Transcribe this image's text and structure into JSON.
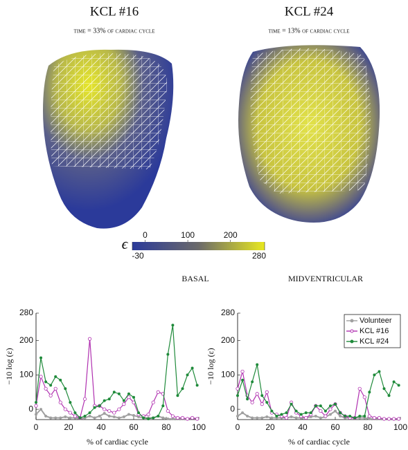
{
  "panels": [
    {
      "title": "KCL #16",
      "subtitle": "time = 33% of cardiac cycle"
    },
    {
      "title": "KCL #24",
      "subtitle": "time = 13% of cardiac cycle"
    }
  ],
  "colorbar": {
    "symbol": "ϵ",
    "clim": [
      -30,
      280
    ],
    "ticks": [
      -30,
      0,
      100,
      200,
      280
    ],
    "colors": [
      "#2b3a9a",
      "#6b6a6a",
      "#e8e820"
    ]
  },
  "chart_data": [
    {
      "type": "line",
      "title": "BASAL",
      "xlabel": "% of cardiac cycle",
      "ylabel": "−10 log (ε)",
      "xlim": [
        0,
        100
      ],
      "ylim": [
        -30,
        280
      ],
      "xticks": [
        0,
        20,
        40,
        60,
        80,
        100
      ],
      "yticks": [
        0,
        100,
        200,
        280
      ],
      "x": [
        0,
        3,
        6,
        9,
        12,
        15,
        18,
        21,
        24,
        27,
        30,
        33,
        36,
        39,
        42,
        45,
        48,
        51,
        54,
        57,
        60,
        63,
        66,
        69,
        72,
        75,
        78,
        81,
        84,
        87,
        90,
        93,
        96,
        99
      ],
      "series": [
        {
          "name": "Volunteer",
          "color": "#a0a0a0",
          "values": [
            -15,
            0,
            -20,
            -25,
            -25,
            -25,
            -22,
            -25,
            -25,
            -28,
            -25,
            -20,
            -25,
            -20,
            -12,
            -20,
            -22,
            -25,
            -22,
            -15,
            -18,
            -22,
            -25,
            -25,
            -25,
            -20,
            -25,
            -28,
            -28,
            -28,
            -28,
            -28,
            -25,
            -28
          ]
        },
        {
          "name": "KCL #16",
          "color": "#b030b0",
          "values": [
            10,
            95,
            60,
            40,
            60,
            20,
            0,
            -10,
            -20,
            -25,
            30,
            205,
            10,
            10,
            0,
            -5,
            -10,
            0,
            15,
            35,
            20,
            -15,
            -20,
            -15,
            20,
            50,
            45,
            -5,
            -20,
            -25,
            -25,
            -28,
            -25,
            -28
          ]
        },
        {
          "name": "KCL #24",
          "color": "#1f8a3a",
          "values": [
            20,
            150,
            80,
            70,
            95,
            85,
            60,
            20,
            -10,
            -25,
            -20,
            -10,
            5,
            10,
            25,
            30,
            50,
            45,
            25,
            45,
            35,
            -10,
            -25,
            -28,
            -25,
            -20,
            10,
            160,
            245,
            40,
            60,
            100,
            120,
            70
          ]
        }
      ]
    },
    {
      "type": "line",
      "title": "MIDVENTRICULAR",
      "xlabel": "% of cardiac cycle",
      "ylabel": "−10 log (ε)",
      "xlim": [
        0,
        100
      ],
      "ylim": [
        -30,
        280
      ],
      "xticks": [
        0,
        20,
        40,
        60,
        80,
        100
      ],
      "yticks": [
        0,
        100,
        200,
        280
      ],
      "legend": "upper right",
      "x": [
        0,
        3,
        6,
        9,
        12,
        15,
        18,
        21,
        24,
        27,
        30,
        33,
        36,
        39,
        42,
        45,
        48,
        51,
        54,
        57,
        60,
        63,
        66,
        69,
        72,
        75,
        78,
        81,
        84,
        87,
        90,
        93,
        96,
        99
      ],
      "series": [
        {
          "name": "Volunteer",
          "color": "#a0a0a0",
          "values": [
            -20,
            -10,
            -20,
            -25,
            -25,
            -25,
            -22,
            -25,
            -25,
            -25,
            -25,
            -22,
            -25,
            -25,
            -25,
            -22,
            -20,
            -25,
            -22,
            -15,
            -5,
            -20,
            -25,
            -25,
            -25,
            -25,
            -25,
            -28,
            -28,
            -28,
            -28,
            -28,
            -28,
            -28
          ]
        },
        {
          "name": "KCL #16",
          "color": "#b030b0",
          "values": [
            60,
            110,
            40,
            20,
            45,
            15,
            50,
            -10,
            -15,
            -20,
            -25,
            20,
            -10,
            -20,
            -25,
            -15,
            10,
            -5,
            -20,
            0,
            15,
            -10,
            -20,
            -25,
            -25,
            60,
            35,
            -20,
            -25,
            -25,
            -28,
            -28,
            -28,
            -28
          ]
        },
        {
          "name": "KCL #24",
          "color": "#1f8a3a",
          "values": [
            40,
            85,
            30,
            80,
            130,
            40,
            20,
            -5,
            -20,
            -15,
            -10,
            15,
            -5,
            -15,
            -10,
            -10,
            10,
            10,
            -5,
            10,
            15,
            -10,
            -20,
            -20,
            -25,
            -20,
            -20,
            50,
            100,
            110,
            60,
            40,
            80,
            70
          ]
        }
      ]
    }
  ]
}
